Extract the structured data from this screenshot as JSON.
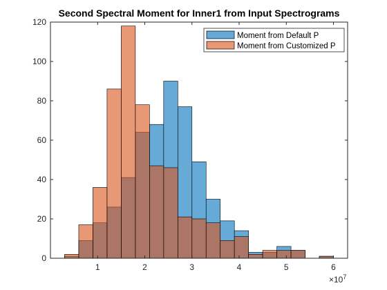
{
  "chart_data": {
    "type": "bar",
    "title": "Second Spectral Moment for Inner1 from Input Spectrograms",
    "xlabel": "",
    "ylabel": "",
    "x_exponent_label": "×10",
    "x_exponent_power": "7",
    "xlim": [
      0,
      6.3
    ],
    "ylim": [
      0,
      120
    ],
    "xticks": [
      1,
      2,
      3,
      4,
      5,
      6
    ],
    "xtick_labels": [
      "1",
      "2",
      "3",
      "4",
      "5",
      "6"
    ],
    "yticks": [
      0,
      20,
      40,
      60,
      80,
      100,
      120
    ],
    "ytick_labels": [
      "0",
      "20",
      "40",
      "60",
      "80",
      "100",
      "120"
    ],
    "grid": false,
    "legend_position": "top-right",
    "bin_width": 0.3,
    "series": [
      {
        "name": "Moment from Default P",
        "color": "#0072BD",
        "bins": [
          {
            "x0": 0.3,
            "count": 1
          },
          {
            "x0": 0.6,
            "count": 9
          },
          {
            "x0": 0.9,
            "count": 18
          },
          {
            "x0": 1.2,
            "count": 26
          },
          {
            "x0": 1.5,
            "count": 41
          },
          {
            "x0": 1.8,
            "count": 64
          },
          {
            "x0": 2.1,
            "count": 68
          },
          {
            "x0": 2.4,
            "count": 90
          },
          {
            "x0": 2.7,
            "count": 77
          },
          {
            "x0": 3.0,
            "count": 49
          },
          {
            "x0": 3.3,
            "count": 30
          },
          {
            "x0": 3.6,
            "count": 19
          },
          {
            "x0": 3.9,
            "count": 14
          },
          {
            "x0": 4.2,
            "count": 3
          },
          {
            "x0": 4.5,
            "count": 3
          },
          {
            "x0": 4.8,
            "count": 6
          },
          {
            "x0": 5.1,
            "count": 4
          },
          {
            "x0": 5.7,
            "count": 1
          }
        ]
      },
      {
        "name": "Moment from Customized P",
        "color": "#D95319",
        "bins": [
          {
            "x0": 0.3,
            "count": 2
          },
          {
            "x0": 0.6,
            "count": 17
          },
          {
            "x0": 0.9,
            "count": 36
          },
          {
            "x0": 1.2,
            "count": 86
          },
          {
            "x0": 1.5,
            "count": 118
          },
          {
            "x0": 1.8,
            "count": 78
          },
          {
            "x0": 2.1,
            "count": 47
          },
          {
            "x0": 2.4,
            "count": 46
          },
          {
            "x0": 2.7,
            "count": 21
          },
          {
            "x0": 3.0,
            "count": 20
          },
          {
            "x0": 3.3,
            "count": 18
          },
          {
            "x0": 3.6,
            "count": 9
          },
          {
            "x0": 3.9,
            "count": 11
          },
          {
            "x0": 4.2,
            "count": 2
          },
          {
            "x0": 4.5,
            "count": 4
          },
          {
            "x0": 4.8,
            "count": 4
          },
          {
            "x0": 5.1,
            "count": 4
          },
          {
            "x0": 5.7,
            "count": 1
          }
        ]
      }
    ]
  }
}
